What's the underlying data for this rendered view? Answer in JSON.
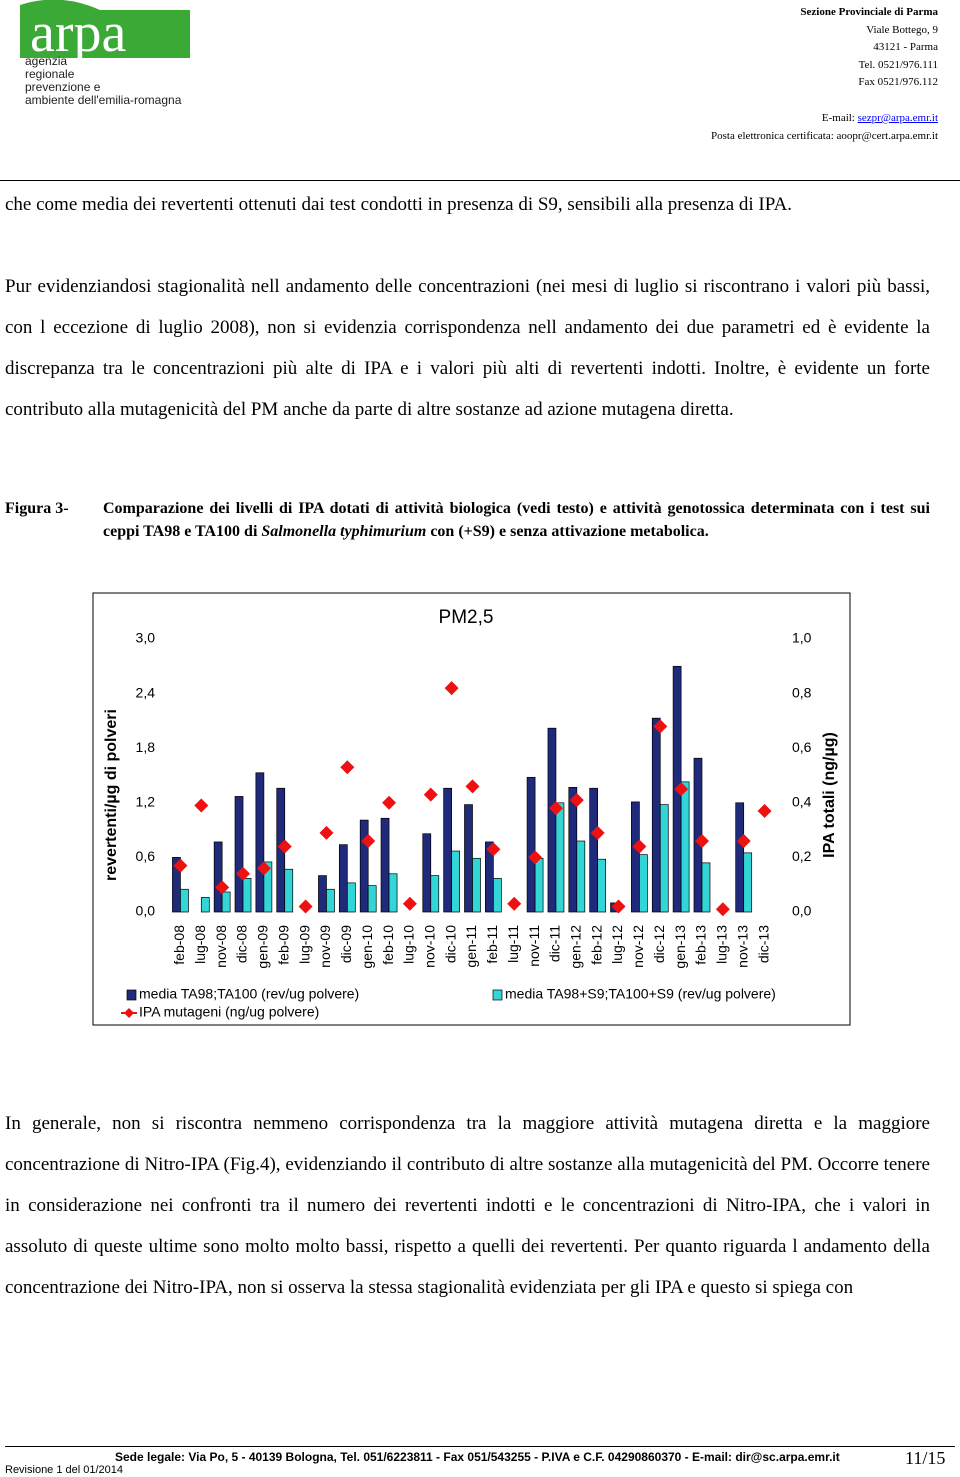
{
  "header": {
    "logo": {
      "name": "arpa",
      "lines": [
        "agenzia",
        "regionale",
        "prevenzione e",
        "ambiente dell'emilia-romagna"
      ]
    },
    "address": [
      "Sezione Provinciale di Parma",
      "Viale Bottego, 9",
      "43121 - Parma",
      "Tel. 0521/976.111",
      "Fax 0521/976.112"
    ],
    "email_label": "E-mail:",
    "email": "sezpr@arpa.emr.it",
    "pec": "Posta elettronica certificata: aoopr@cert.arpa.emr.it"
  },
  "paragraphs": [
    "che come media dei revertenti ottenuti dai test condotti in presenza di S9, sensibili alla presenza di IPA.",
    "Pur evidenziandosi stagionalità nell andamento delle concentrazioni (nei mesi di luglio si riscontrano i valori più bassi, con l eccezione di luglio 2008), non si evidenzia corrispondenza nell andamento dei due parametri ed è evidente la discrepanza tra le concentrazioni più alte di IPA e i valori più alti di revertenti indotti. Inoltre, è evidente un forte contributo alla mutagenicità del PM anche da parte di altre sostanze ad azione mutagena diretta."
  ],
  "caption": {
    "label": "Figura 3-",
    "text": "Comparazione dei livelli di IPA dotati di attività biologica (vedi testo) e attività genotossica determinata con i test sui ceppi TA98 e TA100 di",
    "italic": "Salmonella typhimurium",
    "text_end": "con (+S9) e senza attivazione metabolica."
  },
  "chart_data": {
    "type": "bar",
    "title": "PM2,5",
    "categories": [
      "feb-08",
      "lug-08",
      "nov-08",
      "dic-08",
      "gen-09",
      "feb-09",
      "lug-09",
      "nov-09",
      "dic-09",
      "gen-10",
      "feb-10",
      "lug-10",
      "nov-10",
      "dic-10",
      "gen-11",
      "feb-11",
      "lug-11",
      "nov-11",
      "dic-11",
      "gen-12",
      "feb-12",
      "lug-12",
      "nov-12",
      "dic-12",
      "gen-13",
      "feb-13",
      "lug-13",
      "nov-13",
      "dic-13"
    ],
    "series": [
      {
        "name": "media TA98;TA100 (rev/ug polvere)",
        "color": "#1f2a7a",
        "values": [
          0.6,
          0,
          0.77,
          1.27,
          1.53,
          1.36,
          0,
          0.4,
          0.74,
          1.01,
          1.03,
          0,
          0.86,
          1.36,
          1.18,
          0.77,
          0,
          1.48,
          2.02,
          1.37,
          1.36,
          0.1,
          1.21,
          2.13,
          2.7,
          1.69,
          0,
          1.2,
          0
        ]
      },
      {
        "name": "media TA98+S9;TA100+S9 (rev/ug polvere)",
        "color": "#33d6d6",
        "values": [
          0.25,
          0.16,
          0.22,
          0.37,
          0.55,
          0.47,
          0,
          0.25,
          0.32,
          0.29,
          0.42,
          0,
          0.4,
          0.67,
          0.59,
          0.37,
          0,
          0.59,
          1.2,
          0.78,
          0.58,
          0,
          0.63,
          1.18,
          1.43,
          0.54,
          0,
          0.65,
          0
        ]
      },
      {
        "name": "IPA mutageni (ng/ug polvere)",
        "color": "#ee1111",
        "axis": "y2",
        "values": [
          0.17,
          0.39,
          0.09,
          0.14,
          0.16,
          0.24,
          0.02,
          0.29,
          0.53,
          0.26,
          0.4,
          0.03,
          0.43,
          0.82,
          0.46,
          0.23,
          0.03,
          0.2,
          0.38,
          0.41,
          0.29,
          0.02,
          0.24,
          0.68,
          0.45,
          0.26,
          0.01,
          0.26,
          0.37
        ]
      }
    ],
    "ylabel": "revertenti/µg di  polveri",
    "y2label": "IPA totali (ng/µg)",
    "ylim": [
      0,
      3
    ],
    "yticks": [
      {
        "value": 0,
        "label": "0,0"
      },
      {
        "value": 0.6,
        "label": "0,6"
      },
      {
        "value": 1.2,
        "label": "1,2"
      },
      {
        "value": 1.8,
        "label": "1,8"
      },
      {
        "value": 2.4,
        "label": "2,4"
      },
      {
        "value": 3,
        "label": "3,0"
      }
    ],
    "y2lim": [
      0,
      1
    ],
    "y2ticks": [
      {
        "value": 0,
        "label": "0,0"
      },
      {
        "value": 0.2,
        "label": "0,2"
      },
      {
        "value": 0.4,
        "label": "0,4"
      },
      {
        "value": 0.6,
        "label": "0,6"
      },
      {
        "value": 0.8,
        "label": "0,8"
      },
      {
        "value": 1,
        "label": "1,0"
      }
    ],
    "grid": false
  },
  "paragraph_after": "In generale, non si riscontra nemmeno corrispondenza tra la maggiore attività mutagena diretta e la maggiore concentrazione di Nitro-IPA (Fig.4), evidenziando il contributo di altre sostanze alla mutagenicità del PM. Occorre tenere in considerazione nei confronti tra il numero dei revertenti indotti e le concentrazioni di Nitro-IPA, che i valori in assoluto di queste ultime sono molto molto bassi, rispetto a quelli dei revertenti. Per quanto riguarda l andamento della concentrazione dei Nitro-IPA, non si osserva la stessa stagionalità evidenziata per gli IPA e questo si spiega con",
  "footer": {
    "legal": "Sede legale: Via Po, 5 - 40139 Bologna, Tel. 051/6223811 - Fax 051/543255 - P.IVA e C.F. 04290860370 - E-mail: dir@sc.arpa.emr.it",
    "page": "11/15",
    "revision": "Revisione 1 del 01/2014"
  }
}
